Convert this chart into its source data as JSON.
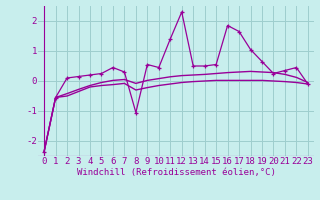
{
  "title": "",
  "xlabel": "Windchill (Refroidissement éolien,°C)",
  "ylabel": "",
  "background_color": "#c8eeed",
  "grid_color": "#9ecece",
  "line_color": "#990099",
  "x": [
    0,
    1,
    2,
    3,
    4,
    5,
    6,
    7,
    8,
    9,
    10,
    11,
    12,
    13,
    14,
    15,
    16,
    17,
    18,
    19,
    20,
    21,
    22,
    23
  ],
  "y_main": [
    -2.35,
    -0.55,
    0.1,
    0.15,
    0.2,
    0.25,
    0.45,
    0.3,
    -1.05,
    0.55,
    0.45,
    1.4,
    2.3,
    0.5,
    0.5,
    0.55,
    1.85,
    1.65,
    1.05,
    0.65,
    0.25,
    0.35,
    0.45,
    -0.1
  ],
  "y_smooth1": [
    -2.35,
    -0.55,
    -0.5,
    -0.35,
    -0.2,
    -0.15,
    -0.12,
    -0.08,
    -0.3,
    -0.22,
    -0.15,
    -0.1,
    -0.05,
    -0.02,
    0.0,
    0.02,
    0.02,
    0.02,
    0.02,
    0.02,
    0.0,
    -0.02,
    -0.05,
    -0.1
  ],
  "y_smooth2": [
    -2.35,
    -0.55,
    -0.42,
    -0.28,
    -0.15,
    -0.05,
    0.02,
    0.05,
    -0.08,
    0.02,
    0.08,
    0.14,
    0.18,
    0.2,
    0.22,
    0.25,
    0.28,
    0.3,
    0.32,
    0.3,
    0.28,
    0.22,
    0.12,
    -0.05
  ],
  "ylim": [
    -2.5,
    2.5
  ],
  "xlim": [
    -0.5,
    23.5
  ],
  "yticks": [
    -2,
    -1,
    0,
    1,
    2
  ],
  "xticks": [
    0,
    1,
    2,
    3,
    4,
    5,
    6,
    7,
    8,
    9,
    10,
    11,
    12,
    13,
    14,
    15,
    16,
    17,
    18,
    19,
    20,
    21,
    22,
    23
  ],
  "xlabel_fontsize": 6.5,
  "tick_fontsize": 6.5
}
